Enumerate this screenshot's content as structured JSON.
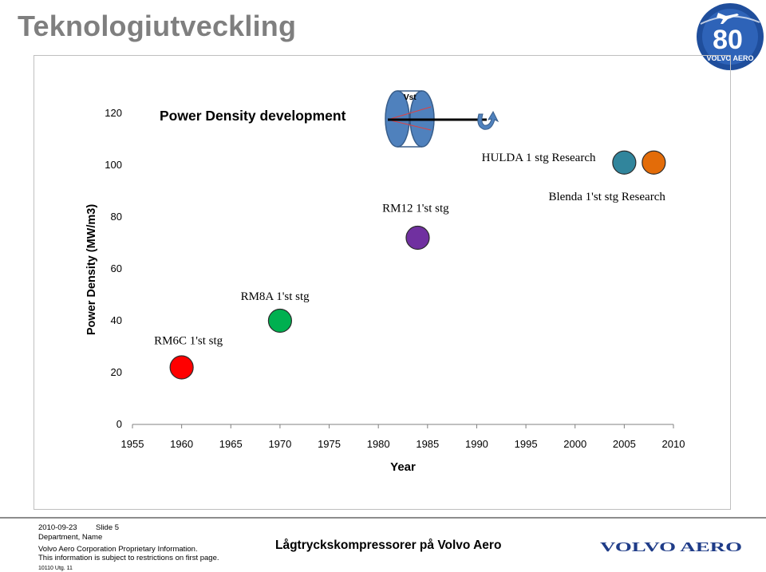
{
  "slide": {
    "title": "Teknologiutveckling"
  },
  "logo": {
    "number": "80",
    "text": "VOLVO AERO",
    "color": "#1f4e9c"
  },
  "chart_data": {
    "type": "scatter",
    "title": "Power Density development",
    "xlabel": "Year",
    "ylabel": "Power Density (MW/m3)",
    "xlim": [
      1955,
      2010
    ],
    "ylim": [
      0,
      120
    ],
    "x_ticks": [
      1955,
      1960,
      1965,
      1970,
      1975,
      1980,
      1985,
      1990,
      1995,
      2000,
      2005,
      2010
    ],
    "y_ticks": [
      0,
      20,
      40,
      60,
      80,
      100,
      120
    ],
    "grid": false,
    "points": [
      {
        "label": "RM6C 1'st stg",
        "x": 1960,
        "y": 22,
        "color": "#ff0000"
      },
      {
        "label": "RM8A 1'st stg",
        "x": 1970,
        "y": 40,
        "color": "#00b050"
      },
      {
        "label": "RM12 1'st stg",
        "x": 1984,
        "y": 72,
        "color": "#7030a0"
      },
      {
        "label": "HULDA 1 stg Research",
        "x": 2005,
        "y": 101,
        "color": "#31859c"
      },
      {
        "label": "Blenda 1'st stg Research",
        "x": 2008,
        "y": 101,
        "color": "#e36c09"
      }
    ],
    "point_labels": [
      {
        "text": "RM6C 1'st stg",
        "anchor_x": 1957.2,
        "anchor_y": 31
      },
      {
        "text": "RM8A 1'st stg",
        "anchor_x": 1966,
        "anchor_y": 48
      },
      {
        "text": "RM12 1'st stg",
        "anchor_x": 1980.4,
        "anchor_y": 82
      },
      {
        "text": "HULDA 1 stg Research",
        "anchor_x": 1990.5,
        "anchor_y": 101.5
      },
      {
        "text": "Blenda 1'st stg Research",
        "anchor_x": 1997.3,
        "anchor_y": 86.5
      }
    ],
    "illustration_label": "Vst"
  },
  "footer": {
    "date": "2010-09-23",
    "slide": "Slide 5",
    "department": "Department, Name",
    "proprietary": "Volvo Aero Corporation Proprietary Information.",
    "restriction": "This information is subject to restrictions on first page.",
    "form": "10110 Utg. 11",
    "center": "Lågtryckskompressorer på Volvo Aero",
    "brand": "VOLVO AERO",
    "brand_color": "#1f3c88"
  }
}
